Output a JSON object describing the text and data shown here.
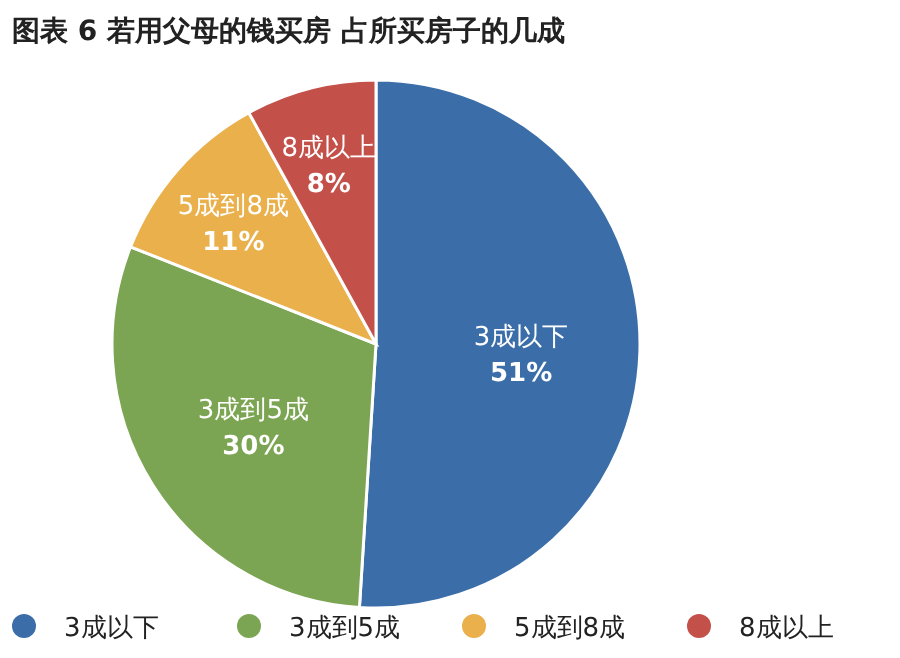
{
  "chart_data": {
    "type": "pie",
    "title": "图表 6 若用父母的钱买房 占所买房子的几成",
    "categories": [
      "3成以下",
      "3成到5成",
      "5成到8成",
      "8成以上"
    ],
    "values": [
      51,
      30,
      11,
      8
    ],
    "value_labels": [
      "51%",
      "30%",
      "11%",
      "8%"
    ],
    "colors": [
      "#3b6ea8",
      "#7ba552",
      "#e9b04c",
      "#c4504a"
    ],
    "legend": "bottom"
  }
}
